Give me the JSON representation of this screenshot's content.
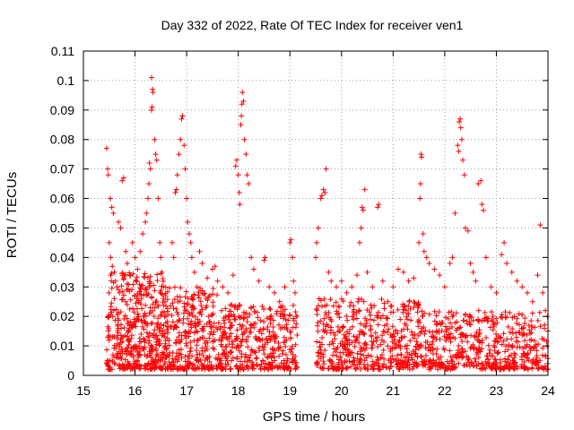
{
  "chart_data": {
    "type": "scatter",
    "title": "Day 332 of 2022, Rate Of TEC Index for receiver ven1",
    "xlabel": "GPS time / hours",
    "ylabel": "ROTI / TECUs",
    "xlim": [
      15,
      24
    ],
    "ylim": [
      0,
      0.11
    ],
    "x_ticks": [
      15,
      16,
      17,
      18,
      19,
      20,
      21,
      22,
      23,
      24
    ],
    "x_tick_labels": [
      "15",
      "16",
      "17",
      "18",
      "19",
      "20",
      "21",
      "22",
      "23",
      "24"
    ],
    "y_ticks": [
      0,
      0.01,
      0.02,
      0.03,
      0.04,
      0.05,
      0.06,
      0.07,
      0.08,
      0.09,
      0.1,
      0.11
    ],
    "y_tick_labels": [
      "0",
      "0.01",
      "0.02",
      "0.03",
      "0.04",
      "0.05",
      "0.06",
      "0.07",
      "0.08",
      "0.09",
      "0.1",
      "0.11"
    ],
    "grid": true,
    "marker": "+",
    "marker_color": "#ff0000",
    "series": [
      {
        "points": [
          [
            15.45,
            0.077
          ],
          [
            15.47,
            0.07
          ],
          [
            15.48,
            0.068
          ],
          [
            15.52,
            0.06
          ],
          [
            15.55,
            0.057
          ],
          [
            15.58,
            0.055
          ],
          [
            15.5,
            0.045
          ],
          [
            15.53,
            0.04
          ],
          [
            15.56,
            0.037
          ],
          [
            15.6,
            0.035
          ],
          [
            15.62,
            0.032
          ],
          [
            15.65,
            0.03
          ],
          [
            15.7,
            0.028
          ],
          [
            15.75,
            0.066
          ],
          [
            15.78,
            0.067
          ],
          [
            15.72,
            0.05
          ],
          [
            15.68,
            0.052
          ],
          [
            15.82,
            0.042
          ],
          [
            15.85,
            0.038
          ],
          [
            15.9,
            0.034
          ],
          [
            15.95,
            0.045
          ],
          [
            16.0,
            0.04
          ],
          [
            16.05,
            0.036
          ],
          [
            16.1,
            0.042
          ],
          [
            16.15,
            0.048
          ],
          [
            16.2,
            0.052
          ],
          [
            16.22,
            0.055
          ],
          [
            16.25,
            0.06
          ],
          [
            16.27,
            0.065
          ],
          [
            16.3,
            0.07
          ],
          [
            16.28,
            0.072
          ],
          [
            16.32,
            0.09
          ],
          [
            16.33,
            0.091
          ],
          [
            16.34,
            0.097
          ],
          [
            16.35,
            0.096
          ],
          [
            16.32,
            0.101
          ],
          [
            16.38,
            0.08
          ],
          [
            16.4,
            0.075
          ],
          [
            16.42,
            0.073
          ],
          [
            16.45,
            0.06
          ],
          [
            16.48,
            0.045
          ],
          [
            16.5,
            0.04
          ],
          [
            16.52,
            0.035
          ],
          [
            16.55,
            0.03
          ],
          [
            16.58,
            0.025
          ],
          [
            16.6,
            0.02
          ],
          [
            16.72,
            0.045
          ],
          [
            16.75,
            0.04
          ],
          [
            16.78,
            0.062
          ],
          [
            16.8,
            0.063
          ],
          [
            16.82,
            0.068
          ],
          [
            16.85,
            0.075
          ],
          [
            16.88,
            0.08
          ],
          [
            16.9,
            0.087
          ],
          [
            16.92,
            0.088
          ],
          [
            16.95,
            0.078
          ],
          [
            16.97,
            0.07
          ],
          [
            17.0,
            0.06
          ],
          [
            17.02,
            0.052
          ],
          [
            17.05,
            0.048
          ],
          [
            17.08,
            0.045
          ],
          [
            17.1,
            0.04
          ],
          [
            17.15,
            0.035
          ],
          [
            17.2,
            0.03
          ],
          [
            17.25,
            0.042
          ],
          [
            17.3,
            0.038
          ],
          [
            17.4,
            0.033
          ],
          [
            17.5,
            0.036
          ],
          [
            17.55,
            0.037
          ],
          [
            17.6,
            0.032
          ],
          [
            17.7,
            0.03
          ],
          [
            17.8,
            0.028
          ],
          [
            17.9,
            0.034
          ],
          [
            17.95,
            0.071
          ],
          [
            17.97,
            0.073
          ],
          [
            18.0,
            0.068
          ],
          [
            18.02,
            0.062
          ],
          [
            18.03,
            0.058
          ],
          [
            18.05,
            0.085
          ],
          [
            18.06,
            0.088
          ],
          [
            18.07,
            0.092
          ],
          [
            18.08,
            0.096
          ],
          [
            18.1,
            0.093
          ],
          [
            18.12,
            0.08
          ],
          [
            18.15,
            0.075
          ],
          [
            18.17,
            0.068
          ],
          [
            18.2,
            0.065
          ],
          [
            18.25,
            0.04
          ],
          [
            18.3,
            0.036
          ],
          [
            18.4,
            0.032
          ],
          [
            18.5,
            0.039
          ],
          [
            18.52,
            0.04
          ],
          [
            18.6,
            0.03
          ],
          [
            18.7,
            0.028
          ],
          [
            18.8,
            0.025
          ],
          [
            18.9,
            0.03
          ],
          [
            19.0,
            0.045
          ],
          [
            19.02,
            0.046
          ],
          [
            19.05,
            0.04
          ],
          [
            19.07,
            0.032
          ],
          [
            19.1,
            0.028
          ],
          [
            19.12,
            0.02
          ]
        ]
      },
      {
        "points": [
          [
            19.5,
            0.04
          ],
          [
            19.52,
            0.045
          ],
          [
            19.55,
            0.05
          ],
          [
            19.6,
            0.06
          ],
          [
            19.62,
            0.061
          ],
          [
            19.65,
            0.063
          ],
          [
            19.68,
            0.062
          ],
          [
            19.7,
            0.07
          ],
          [
            19.75,
            0.035
          ],
          [
            19.8,
            0.032
          ],
          [
            19.9,
            0.03
          ],
          [
            20.0,
            0.032
          ],
          [
            20.1,
            0.028
          ],
          [
            20.2,
            0.03
          ],
          [
            20.3,
            0.034
          ],
          [
            20.35,
            0.045
          ],
          [
            20.38,
            0.05
          ],
          [
            20.4,
            0.057
          ],
          [
            20.42,
            0.056
          ],
          [
            20.45,
            0.063
          ],
          [
            20.5,
            0.035
          ],
          [
            20.6,
            0.03
          ],
          [
            20.7,
            0.057
          ],
          [
            20.72,
            0.058
          ],
          [
            20.8,
            0.032
          ],
          [
            20.9,
            0.025
          ],
          [
            21.0,
            0.03
          ],
          [
            21.1,
            0.036
          ],
          [
            21.2,
            0.035
          ],
          [
            21.3,
            0.032
          ],
          [
            21.4,
            0.033
          ],
          [
            21.5,
            0.045
          ],
          [
            21.52,
            0.06
          ],
          [
            21.53,
            0.065
          ],
          [
            21.54,
            0.075
          ],
          [
            21.55,
            0.074
          ],
          [
            21.58,
            0.048
          ],
          [
            21.6,
            0.042
          ],
          [
            21.65,
            0.04
          ],
          [
            21.7,
            0.038
          ],
          [
            21.8,
            0.036
          ],
          [
            21.9,
            0.034
          ],
          [
            22.0,
            0.03
          ],
          [
            22.1,
            0.038
          ],
          [
            22.15,
            0.04
          ],
          [
            22.2,
            0.055
          ],
          [
            22.25,
            0.078
          ],
          [
            22.27,
            0.076
          ],
          [
            22.28,
            0.086
          ],
          [
            22.3,
            0.087
          ],
          [
            22.31,
            0.084
          ],
          [
            22.33,
            0.08
          ],
          [
            22.35,
            0.073
          ],
          [
            22.38,
            0.068
          ],
          [
            22.4,
            0.05
          ],
          [
            22.45,
            0.049
          ],
          [
            22.5,
            0.038
          ],
          [
            22.55,
            0.035
          ],
          [
            22.6,
            0.032
          ],
          [
            22.65,
            0.065
          ],
          [
            22.7,
            0.066
          ],
          [
            22.72,
            0.058
          ],
          [
            22.75,
            0.056
          ],
          [
            22.8,
            0.04
          ],
          [
            22.9,
            0.03
          ],
          [
            23.0,
            0.028
          ],
          [
            23.1,
            0.041
          ],
          [
            23.15,
            0.045
          ],
          [
            23.2,
            0.038
          ],
          [
            23.3,
            0.035
          ],
          [
            23.4,
            0.032
          ],
          [
            23.5,
            0.03
          ],
          [
            23.6,
            0.028
          ],
          [
            23.7,
            0.025
          ],
          [
            23.8,
            0.034
          ],
          [
            23.85,
            0.051
          ],
          [
            23.9,
            0.028
          ],
          [
            23.95,
            0.022
          ],
          [
            24.0,
            0.015
          ]
        ]
      }
    ],
    "dense_bands": [
      {
        "x_start": 15.45,
        "x_end": 16.55,
        "y_floor": 0.002,
        "y_ceil": 0.035,
        "count": 420,
        "seed": 11
      },
      {
        "x_start": 16.55,
        "x_end": 17.6,
        "y_floor": 0.002,
        "y_ceil": 0.03,
        "count": 320,
        "seed": 23
      },
      {
        "x_start": 17.6,
        "x_end": 19.15,
        "y_floor": 0.002,
        "y_ceil": 0.024,
        "count": 380,
        "seed": 37
      },
      {
        "x_start": 19.5,
        "x_end": 21.5,
        "y_floor": 0.002,
        "y_ceil": 0.026,
        "count": 460,
        "seed": 41
      },
      {
        "x_start": 21.5,
        "x_end": 24.0,
        "y_floor": 0.002,
        "y_ceil": 0.022,
        "count": 520,
        "seed": 53
      }
    ]
  }
}
